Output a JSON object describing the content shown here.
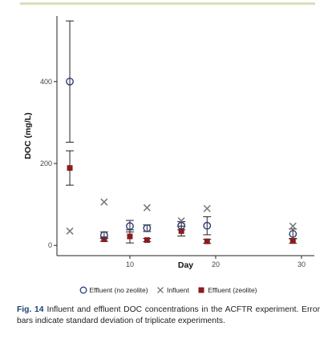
{
  "chart_data": {
    "type": "scatter",
    "xlabel": "Day",
    "ylabel": "DOC (mg/L)",
    "xlim": [
      1.5,
      31.5
    ],
    "ylim": [
      -25,
      560
    ],
    "xticks": [
      10,
      20,
      30
    ],
    "yticks": [
      0,
      200,
      400
    ],
    "grid": false,
    "legend_position": "bottom",
    "series": [
      {
        "name": "Effluent (no zeolite)",
        "marker": "open-circle",
        "color": "#2f3a7a",
        "x": [
          3,
          7,
          10,
          12,
          16,
          19,
          29
        ],
        "y": [
          400,
          25,
          47,
          42,
          48,
          48,
          28
        ],
        "err": [
          148,
          8,
          14,
          8,
          10,
          22,
          12
        ]
      },
      {
        "name": "Influent",
        "marker": "cross",
        "color": "#777777",
        "x": [
          3,
          7,
          12,
          16,
          19,
          29
        ],
        "y": [
          35,
          106,
          92,
          60,
          90,
          47
        ]
      },
      {
        "name": "Effluent (zeolite)",
        "marker": "filled-square",
        "color": "#8a1c1c",
        "x": [
          3,
          7,
          10,
          12,
          16,
          19,
          29
        ],
        "y": [
          189,
          15,
          22,
          13,
          35,
          10,
          11
        ],
        "err": [
          42,
          5,
          16,
          4,
          12,
          5,
          6
        ]
      }
    ]
  },
  "caption": {
    "label": "Fig. 14",
    "text": "Influent and effluent DOC concentrations in the ACFTR experiment. Error bars indicate standard deviation of triplicate experiments."
  }
}
